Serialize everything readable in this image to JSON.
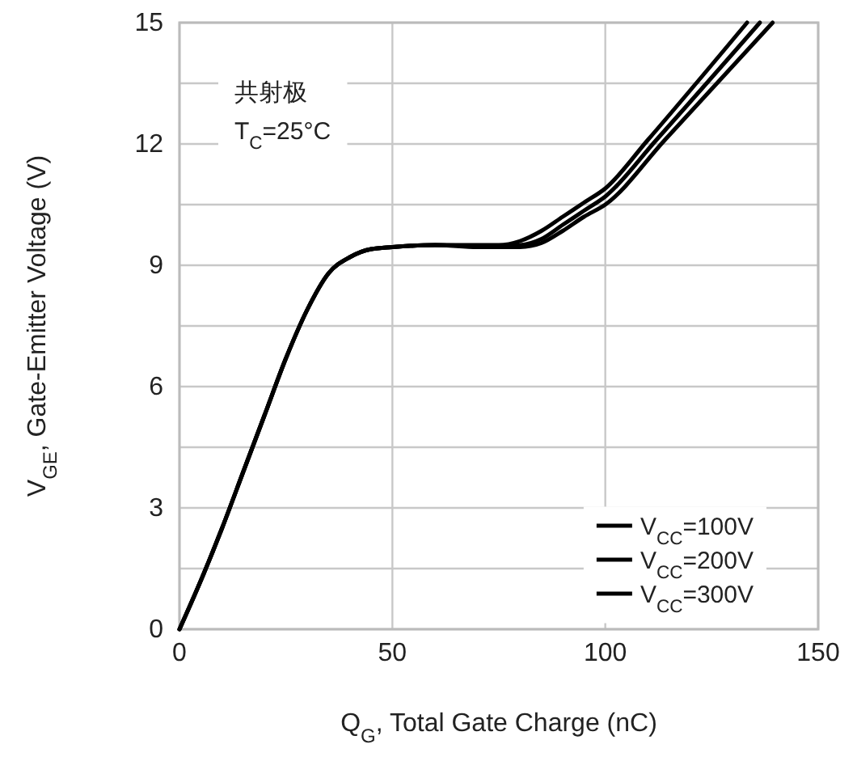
{
  "chart_data": {
    "type": "line",
    "xlabel": "Q$_{G}$, Total Gate Charge (nC)",
    "ylabel": "V$_{GE}$, Gate-Emitter Voltage (V)",
    "xlim": [
      0,
      150
    ],
    "xticks": [
      0,
      50,
      100,
      150
    ],
    "ylim": [
      0,
      15
    ],
    "yticks": [
      0,
      {
        "value": 1.5,
        "label": null
      },
      3,
      {
        "value": 4.5,
        "label": null
      },
      6,
      {
        "value": 7.5,
        "label": null
      },
      9,
      {
        "value": 10.5,
        "label": null
      },
      12,
      {
        "value": 13.5,
        "label": null
      },
      15
    ],
    "grid": true,
    "legend": "bottom right",
    "line_style": "solid",
    "marker": "none",
    "annotations": [
      "共射极",
      "T$_{C}$=25°C"
    ],
    "series": [
      {
        "name": "V$_{CC}$=100V",
        "color": "#000000",
        "x": [
          0,
          5,
          10,
          15,
          20,
          25,
          30,
          35,
          40,
          45,
          50,
          60,
          70,
          75,
          80,
          85,
          90,
          95,
          100,
          110,
          133.3
        ],
        "values": [
          0,
          1.2,
          2.5,
          3.9,
          5.3,
          6.7,
          7.9,
          8.8,
          9.2,
          9.4,
          9.45,
          9.5,
          9.5,
          9.5,
          9.6,
          9.85,
          10.2,
          10.55,
          10.9,
          12.1,
          15
        ]
      },
      {
        "name": "V$_{CC}$=200V",
        "color": "#000000",
        "x": [
          0,
          5,
          10,
          15,
          20,
          25,
          30,
          35,
          40,
          45,
          50,
          60,
          70,
          75,
          80,
          85,
          90,
          95,
          100,
          112,
          136.3
        ],
        "values": [
          0,
          1.2,
          2.5,
          3.9,
          5.3,
          6.7,
          7.9,
          8.8,
          9.2,
          9.4,
          9.45,
          9.5,
          9.48,
          9.48,
          9.5,
          9.65,
          10.0,
          10.35,
          10.7,
          12.1,
          15
        ]
      },
      {
        "name": "V$_{CC}$=300V",
        "color": "#000000",
        "x": [
          0,
          5,
          10,
          15,
          20,
          25,
          30,
          35,
          40,
          45,
          50,
          60,
          70,
          75,
          80,
          85,
          90,
          95,
          100,
          114,
          139.3
        ],
        "values": [
          0,
          1.2,
          2.5,
          3.9,
          5.3,
          6.7,
          7.9,
          8.8,
          9.2,
          9.4,
          9.45,
          9.5,
          9.45,
          9.45,
          9.45,
          9.55,
          9.85,
          10.2,
          10.5,
          12.1,
          15
        ]
      }
    ]
  }
}
